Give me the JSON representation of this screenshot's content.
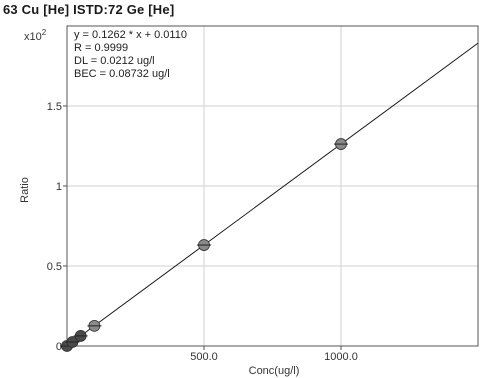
{
  "chart_data": {
    "type": "scatter",
    "title": "63 Cu [He] ISTD:72 Ge [He]",
    "xlabel": "Conc(ug/l)",
    "ylabel": "Ratio",
    "y_multiplier_label": "x10",
    "y_multiplier_exp": "2",
    "xlim": [
      0,
      1500
    ],
    "ylim": [
      0,
      2.0
    ],
    "grid": true,
    "x_ticks": [
      {
        "value": 500,
        "label": "500.0"
      },
      {
        "value": 1000,
        "label": "1000.0"
      }
    ],
    "y_ticks": [
      {
        "value": 0,
        "label": "0"
      },
      {
        "value": 0.5,
        "label": "0.5"
      },
      {
        "value": 1,
        "label": "1"
      },
      {
        "value": 1.5,
        "label": "1.5"
      }
    ],
    "fit": {
      "slope": 0.001262,
      "intercept": 0.00011
    },
    "annotations": [
      "y = 0.1262 * x  + 0.0110",
      "R = 0.9999",
      "DL = 0.0212 ug/l",
      "BEC = 0.08732 ug/l"
    ],
    "points": [
      {
        "x": 0,
        "y": 0.0001
      },
      {
        "x": 20,
        "y": 0.025
      },
      {
        "x": 50,
        "y": 0.063
      },
      {
        "x": 100,
        "y": 0.126
      },
      {
        "x": 500,
        "y": 0.631
      },
      {
        "x": 1000,
        "y": 1.262
      }
    ],
    "colors": {
      "marker": "#8a8a8a",
      "marker_dark": "#4a4a4a",
      "line": "#1a1a1a",
      "grid": "#d0d0d0"
    }
  }
}
